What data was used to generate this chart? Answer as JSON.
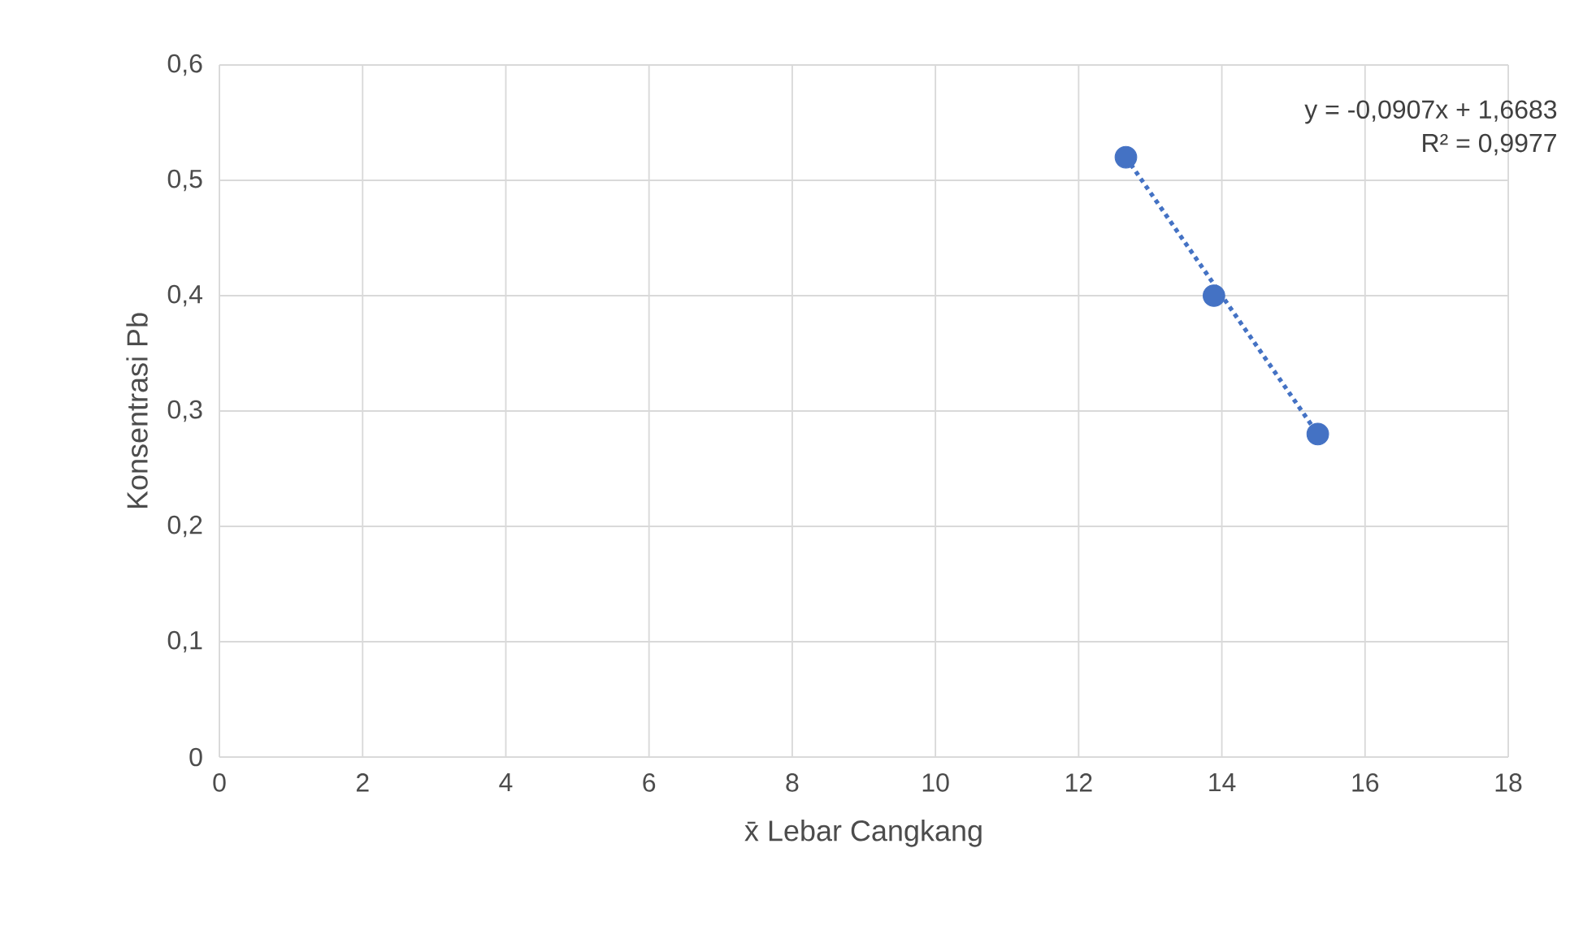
{
  "chart_data": {
    "type": "scatter",
    "xlabel": "x̄ Lebar Cangkang",
    "ylabel": "Konsentrasi Pb",
    "series": [
      {
        "color": "#4472c4",
        "x": [
          12.66,
          13.89,
          15.34
        ],
        "values": [
          0.52,
          0.4,
          0.28
        ],
        "marker": "circle"
      },
      {
        "type": "line",
        "color": "#4472c4",
        "x": [
          12.66,
          15.34
        ],
        "values": [
          0.52,
          0.28
        ],
        "line_style": "dotted"
      }
    ],
    "annotations": [
      "y = -0,0907x + 1,6683",
      "R² = 0,9977"
    ],
    "xlim": [
      0,
      18
    ],
    "ylim": [
      0,
      0.6
    ],
    "xticks": [
      0,
      2,
      4,
      6,
      8,
      10,
      12,
      14,
      16,
      18
    ],
    "yticks": [
      0,
      {
        "value": 0.1,
        "label": "0,1"
      },
      {
        "value": 0.2,
        "label": "0,2"
      },
      {
        "value": 0.3,
        "label": "0,3"
      },
      {
        "value": 0.4,
        "label": "0,4"
      },
      {
        "value": 0.5,
        "label": "0,5"
      },
      {
        "value": 0.6,
        "label": "0,6"
      }
    ],
    "grid": true
  }
}
